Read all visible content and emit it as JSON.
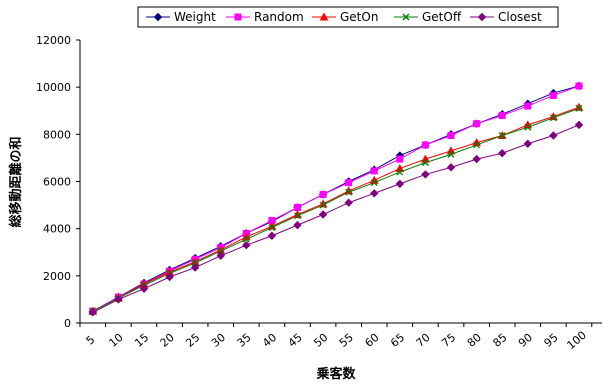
{
  "chart_data": {
    "type": "line",
    "title": "",
    "xlabel": "乗客数",
    "ylabel": "総移動距離の和",
    "x": [
      5,
      10,
      15,
      20,
      25,
      30,
      35,
      40,
      45,
      50,
      55,
      60,
      65,
      70,
      75,
      80,
      85,
      90,
      95,
      100
    ],
    "x_tick_labels": [
      "5",
      "10",
      "15",
      "20",
      "25",
      "30",
      "35",
      "40",
      "45",
      "50",
      "55",
      "60",
      "65",
      "70",
      "75",
      "80",
      "85",
      "90",
      "95",
      "100"
    ],
    "ylim": [
      0,
      12000
    ],
    "y_ticks": [
      0,
      2000,
      4000,
      6000,
      8000,
      10000,
      12000
    ],
    "y_tick_labels": [
      "0",
      "2000",
      "4000",
      "6000",
      "8000",
      "10000",
      "12000"
    ],
    "grid": false,
    "legend_position": "top",
    "series": [
      {
        "name": "Weight",
        "color": "#000080",
        "marker": "diamond",
        "values": [
          500,
          1100,
          1700,
          2250,
          2750,
          3250,
          3800,
          4300,
          4900,
          5450,
          6000,
          6500,
          7100,
          7550,
          8000,
          8450,
          8850,
          9300,
          9750,
          10050
        ]
      },
      {
        "name": "Random",
        "color": "#FF00FF",
        "marker": "square",
        "values": [
          500,
          1100,
          1650,
          2200,
          2700,
          3200,
          3800,
          4350,
          4900,
          5450,
          5950,
          6450,
          6950,
          7550,
          7950,
          8450,
          8800,
          9200,
          9650,
          10050
        ]
      },
      {
        "name": "GetOn",
        "color": "#FF0000",
        "marker": "triangle",
        "values": [
          500,
          1050,
          1650,
          2150,
          2600,
          3100,
          3650,
          4100,
          4600,
          5050,
          5600,
          6050,
          6550,
          6950,
          7300,
          7650,
          7950,
          8400,
          8750,
          9150
        ]
      },
      {
        "name": "GetOff",
        "color": "#008000",
        "marker": "x",
        "values": [
          500,
          1050,
          1600,
          2100,
          2550,
          3050,
          3550,
          4050,
          4550,
          5000,
          5550,
          5950,
          6400,
          6800,
          7150,
          7550,
          7950,
          8300,
          8700,
          9100
        ]
      },
      {
        "name": "Closest",
        "color": "#800080",
        "marker": "diamond",
        "values": [
          450,
          1000,
          1450,
          1950,
          2350,
          2850,
          3300,
          3700,
          4150,
          4600,
          5100,
          5500,
          5900,
          6300,
          6600,
          6950,
          7200,
          7600,
          7950,
          8400
        ]
      }
    ]
  }
}
